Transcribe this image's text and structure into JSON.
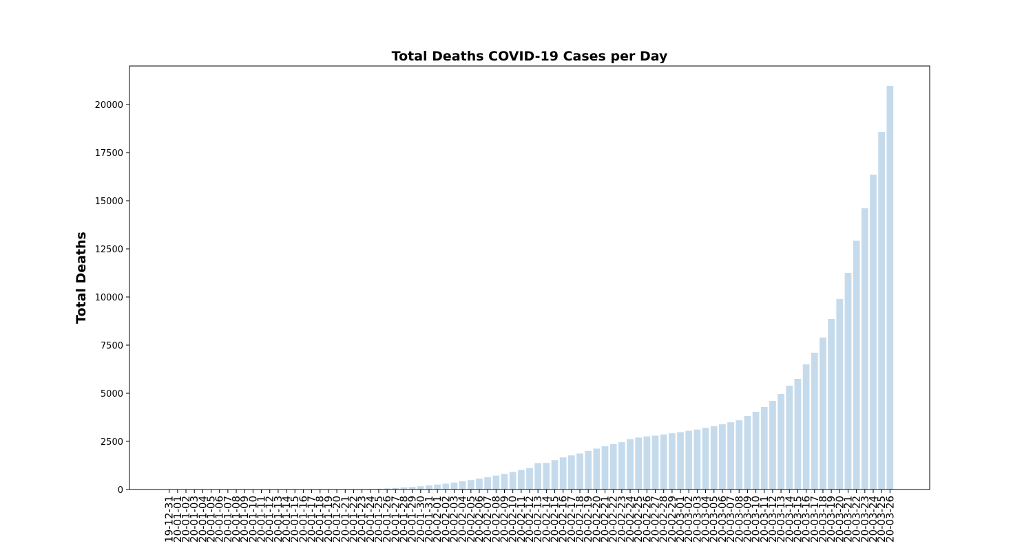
{
  "chart_data": {
    "type": "bar",
    "title": "Total Deaths COVID-19 Cases per Day",
    "y_label": "Total Deaths",
    "categories": [
      "19-12-31",
      "20-01-01",
      "20-01-02",
      "20-01-03",
      "20-01-04",
      "20-01-05",
      "20-01-06",
      "20-01-07",
      "20-01-08",
      "20-01-09",
      "20-01-10",
      "20-01-11",
      "20-01-12",
      "20-01-13",
      "20-01-14",
      "20-01-15",
      "20-01-16",
      "20-01-17",
      "20-01-18",
      "20-01-19",
      "20-01-20",
      "20-01-21",
      "20-01-22",
      "20-01-23",
      "20-01-24",
      "20-01-25",
      "20-01-26",
      "20-01-27",
      "20-01-28",
      "20-01-29",
      "20-01-30",
      "20-01-31",
      "20-02-01",
      "20-02-02",
      "20-02-03",
      "20-02-04",
      "20-02-05",
      "20-02-06",
      "20-02-07",
      "20-02-08",
      "20-02-09",
      "20-02-10",
      "20-02-11",
      "20-02-12",
      "20-02-13",
      "20-02-14",
      "20-02-15",
      "20-02-16",
      "20-02-17",
      "20-02-18",
      "20-02-19",
      "20-02-20",
      "20-02-21",
      "20-02-22",
      "20-02-23",
      "20-02-24",
      "20-02-25",
      "20-02-26",
      "20-02-27",
      "20-02-28",
      "20-02-29",
      "20-03-01",
      "20-03-02",
      "20-03-03",
      "20-03-04",
      "20-03-05",
      "20-03-06",
      "20-03-07",
      "20-03-08",
      "20-03-09",
      "20-03-10",
      "20-03-11",
      "20-03-12",
      "20-03-13",
      "20-03-14",
      "20-03-15",
      "20-03-16",
      "20-03-17",
      "20-03-18",
      "20-03-19",
      "20-03-20",
      "20-03-21",
      "20-03-22",
      "20-03-23",
      "20-03-24",
      "20-03-25",
      "20-03-26"
    ],
    "values": [
      0,
      0,
      0,
      0,
      0,
      0,
      0,
      0,
      0,
      0,
      0,
      1,
      1,
      1,
      1,
      1,
      1,
      2,
      2,
      3,
      3,
      6,
      9,
      17,
      25,
      41,
      56,
      80,
      106,
      132,
      170,
      213,
      259,
      304,
      362,
      426,
      492,
      565,
      638,
      724,
      813,
      910,
      1018,
      1115,
      1369,
      1383,
      1526,
      1669,
      1775,
      1873,
      2009,
      2126,
      2247,
      2360,
      2460,
      2618,
      2699,
      2763,
      2800,
      2858,
      2923,
      2977,
      3050,
      3117,
      3202,
      3285,
      3387,
      3494,
      3599,
      3821,
      4036,
      4286,
      4607,
      4964,
      5393,
      5750,
      6500,
      7107,
      7893,
      8857,
      9893,
      11250,
      12929,
      14607,
      16357,
      18571,
      20964
    ],
    "color": "#c5dbec",
    "ylim": [
      0,
      22000
    ],
    "yticks": [
      0,
      2500,
      5000,
      7500,
      10000,
      12500,
      15000,
      17500,
      20000
    ],
    "grid": false
  }
}
